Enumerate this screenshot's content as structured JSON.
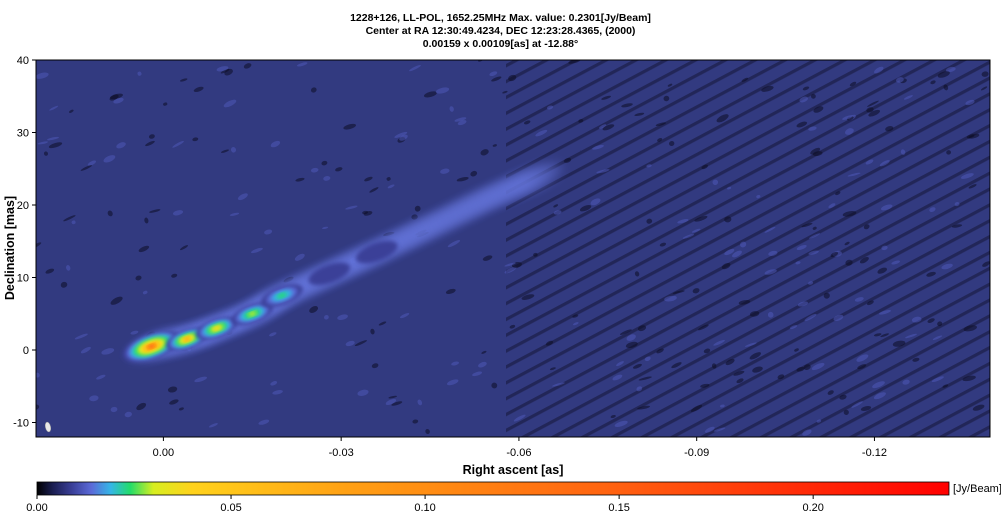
{
  "chart_data": {
    "type": "heatmap",
    "title": "1228+126, LL-POL, 1652.25MHz Max. value: 0.2301[Jy/Beam]",
    "subtitle": "Center at RA 12:30:49.4234, DEC 12:23:28.4365, (2000)",
    "beam": "0.00159 x 0.00109[as] at -12.88°",
    "xlabel": "Right ascent [as]",
    "ylabel": "Declination [mas]",
    "xlim": [
      0.0215,
      -0.1395
    ],
    "ylim": [
      -12,
      40
    ],
    "x_ticks": [
      {
        "value": 0.0,
        "label": "0.00"
      },
      {
        "value": -0.03,
        "label": "-0.03"
      },
      {
        "value": -0.06,
        "label": "-0.06"
      },
      {
        "value": -0.09,
        "label": "-0.09"
      },
      {
        "value": -0.12,
        "label": "-0.12"
      }
    ],
    "y_ticks": [
      {
        "value": 40,
        "label": "40"
      },
      {
        "value": 30,
        "label": "30"
      },
      {
        "value": 20,
        "label": "20"
      },
      {
        "value": 10,
        "label": "10"
      },
      {
        "value": 0,
        "label": "0"
      },
      {
        "value": -10,
        "label": "-10"
      }
    ],
    "peak": {
      "x": 0.001,
      "y": 0.0,
      "value": 0.2301
    },
    "jet": [
      {
        "x": 0.002,
        "y": 0.5,
        "value": 0.23
      },
      {
        "x": -0.004,
        "y": 1.5,
        "value": 0.09
      },
      {
        "x": -0.009,
        "y": 3.0,
        "value": 0.05
      },
      {
        "x": -0.015,
        "y": 5.0,
        "value": 0.03
      },
      {
        "x": -0.02,
        "y": 7.5,
        "value": 0.025
      },
      {
        "x": -0.028,
        "y": 10.5,
        "value": 0.012
      },
      {
        "x": -0.036,
        "y": 13.5,
        "value": 0.009
      },
      {
        "x": -0.045,
        "y": 17.0,
        "value": 0.007
      },
      {
        "x": -0.055,
        "y": 21.0,
        "value": 0.006
      },
      {
        "x": -0.065,
        "y": 24.5,
        "value": 0.005
      }
    ],
    "colorbar": {
      "unit": "[Jy/Beam]",
      "min": 0.0,
      "max": 0.235,
      "ticks": [
        {
          "value": 0.0,
          "label": "0.00"
        },
        {
          "value": 0.05,
          "label": "0.05"
        },
        {
          "value": 0.1,
          "label": "0.10"
        },
        {
          "value": 0.15,
          "label": "0.15"
        },
        {
          "value": 0.2,
          "label": "0.20"
        }
      ],
      "stops": [
        {
          "value": 0.0,
          "color": "#000000"
        },
        {
          "value": 0.004,
          "color": "#1a1d50"
        },
        {
          "value": 0.009,
          "color": "#3a3f98"
        },
        {
          "value": 0.014,
          "color": "#5b6ad8"
        },
        {
          "value": 0.019,
          "color": "#35b6e6"
        },
        {
          "value": 0.024,
          "color": "#22dc6a"
        },
        {
          "value": 0.03,
          "color": "#d7ee20"
        },
        {
          "value": 0.04,
          "color": "#ffd21c"
        },
        {
          "value": 0.08,
          "color": "#ffa014"
        },
        {
          "value": 0.15,
          "color": "#ff6010"
        },
        {
          "value": 0.235,
          "color": "#ff0000"
        }
      ]
    },
    "background_color": "#323a80"
  }
}
